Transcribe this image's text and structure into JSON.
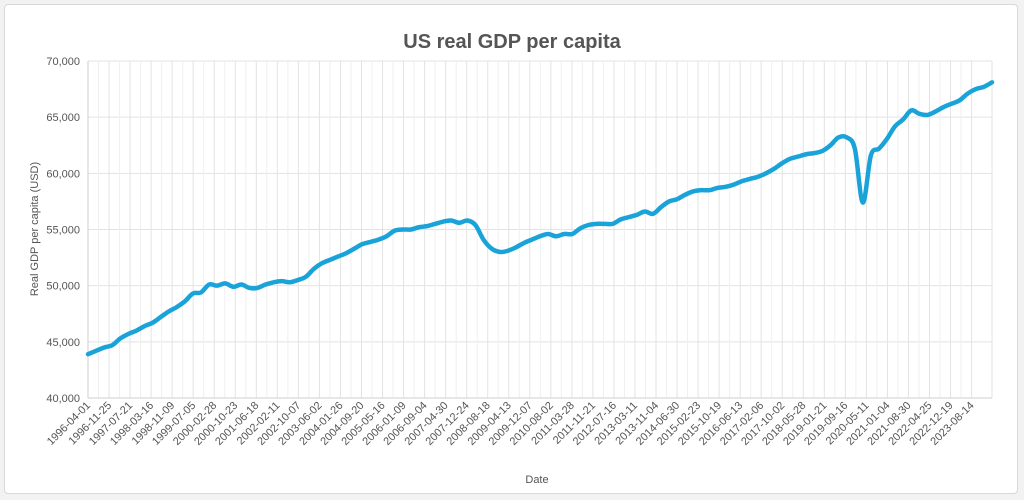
{
  "chart_data": {
    "type": "line",
    "title": "US real GDP per capita",
    "xlabel": "Date",
    "ylabel": "Real GDP per capita (USD)",
    "ylim": [
      40000,
      70000
    ],
    "yticks": [
      "40,000",
      "45,000",
      "50,000",
      "55,000",
      "60,000",
      "65,000",
      "70,000"
    ],
    "xticks": [
      "1996-04-01",
      "1996-11-25",
      "1997-07-21",
      "1998-03-16",
      "1998-11-09",
      "1999-07-05",
      "2000-02-28",
      "2000-10-23",
      "2001-06-18",
      "2002-02-11",
      "2002-10-07",
      "2003-06-02",
      "2004-01-26",
      "2004-09-20",
      "2005-05-16",
      "2006-01-09",
      "2006-09-04",
      "2007-04-30",
      "2007-12-24",
      "2008-08-18",
      "2009-04-13",
      "2009-12-07",
      "2010-08-02",
      "2011-03-28",
      "2011-11-21",
      "2012-07-16",
      "2013-03-11",
      "2013-11-04",
      "2014-06-30",
      "2015-02-23",
      "2015-10-19",
      "2016-06-13",
      "2017-02-06",
      "2017-10-02",
      "2018-05-28",
      "2019-01-21",
      "2019-09-16",
      "2020-05-11",
      "2021-01-04",
      "2021-08-30",
      "2022-04-25",
      "2022-12-19",
      "2023-08-14"
    ],
    "grid": true,
    "legend": "none",
    "line_color": "#1aa3d9",
    "series": [
      {
        "x": [
          "1996-04-01",
          "1996-07-01",
          "1996-10-01",
          "1997-01-01",
          "1997-04-01",
          "1997-07-01",
          "1997-10-01",
          "1998-01-01",
          "1998-04-01",
          "1998-07-01",
          "1998-10-01",
          "1999-01-01",
          "1999-04-01",
          "1999-07-01",
          "1999-10-01",
          "2000-01-01",
          "2000-04-01",
          "2000-07-01",
          "2000-10-01",
          "2001-01-01",
          "2001-04-01",
          "2001-07-01",
          "2001-10-01",
          "2002-01-01",
          "2002-04-01",
          "2002-07-01",
          "2002-10-01",
          "2003-01-01",
          "2003-04-01",
          "2003-07-01",
          "2003-10-01",
          "2004-01-01",
          "2004-04-01",
          "2004-07-01",
          "2004-10-01",
          "2005-01-01",
          "2005-04-01",
          "2005-07-01",
          "2005-10-01",
          "2006-01-01",
          "2006-04-01",
          "2006-07-01",
          "2006-10-01",
          "2007-01-01",
          "2007-04-01",
          "2007-07-01",
          "2007-10-01",
          "2008-01-01",
          "2008-04-01",
          "2008-07-01",
          "2008-10-01",
          "2009-01-01",
          "2009-04-01",
          "2009-07-01",
          "2009-10-01",
          "2010-01-01",
          "2010-04-01",
          "2010-07-01",
          "2010-10-01",
          "2011-01-01",
          "2011-04-01",
          "2011-07-01",
          "2011-10-01",
          "2012-01-01",
          "2012-04-01",
          "2012-07-01",
          "2012-10-01",
          "2013-01-01",
          "2013-04-01",
          "2013-07-01",
          "2013-10-01",
          "2014-01-01",
          "2014-04-01",
          "2014-07-01",
          "2014-10-01",
          "2015-01-01",
          "2015-04-01",
          "2015-07-01",
          "2015-10-01",
          "2016-01-01",
          "2016-04-01",
          "2016-07-01",
          "2016-10-01",
          "2017-01-01",
          "2017-04-01",
          "2017-07-01",
          "2017-10-01",
          "2018-01-01",
          "2018-04-01",
          "2018-07-01",
          "2018-10-01",
          "2019-01-01",
          "2019-04-01",
          "2019-07-01",
          "2019-10-01",
          "2020-01-01",
          "2020-04-01",
          "2020-07-01",
          "2020-10-01",
          "2021-01-01",
          "2021-04-01",
          "2021-07-01",
          "2021-10-01",
          "2022-01-01",
          "2022-04-01",
          "2022-07-01",
          "2022-10-01",
          "2023-01-01",
          "2023-04-01",
          "2023-07-01",
          "2023-10-01",
          "2024-01-01",
          "2024-04-01"
        ],
        "y": [
          43900,
          44200,
          44500,
          44700,
          45300,
          45700,
          46000,
          46400,
          46700,
          47200,
          47700,
          48100,
          48600,
          49300,
          49400,
          50100,
          50000,
          50200,
          49900,
          50100,
          49800,
          49800,
          50100,
          50300,
          50400,
          50300,
          50500,
          50800,
          51500,
          52000,
          52300,
          52600,
          52900,
          53300,
          53700,
          53900,
          54100,
          54400,
          54900,
          55000,
          55000,
          55200,
          55300,
          55500,
          55700,
          55800,
          55600,
          55800,
          55400,
          54100,
          53300,
          53000,
          53100,
          53400,
          53800,
          54100,
          54400,
          54600,
          54400,
          54600,
          54600,
          55100,
          55400,
          55500,
          55500,
          55500,
          55900,
          56100,
          56300,
          56600,
          56400,
          57000,
          57500,
          57700,
          58100,
          58400,
          58500,
          58500,
          58700,
          58800,
          59000,
          59300,
          59500,
          59700,
          60000,
          60400,
          60900,
          61300,
          61500,
          61700,
          61800,
          62000,
          62500,
          63200,
          63200,
          62200,
          57400,
          61600,
          62200,
          63100,
          64200,
          64800,
          65600,
          65300,
          65200,
          65500,
          65900,
          66200,
          66500,
          67100,
          67500,
          67700,
          68100
        ]
      }
    ]
  }
}
